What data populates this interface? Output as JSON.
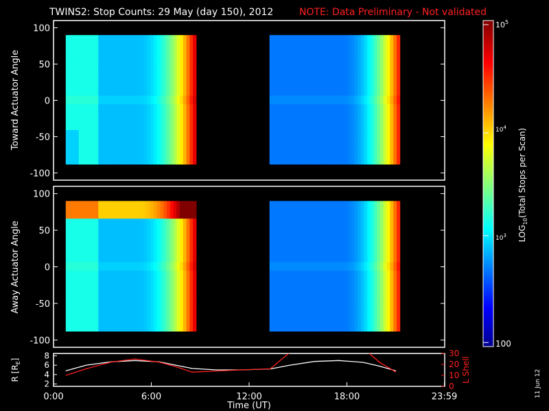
{
  "header": {
    "title": "TWINS2: Stop Counts: 29 May (day 150), 2012",
    "note": "NOTE: Data Preliminary - Not validated"
  },
  "colors": {
    "note": "#ff2020",
    "lshell": "#ff2020",
    "radius": "#ffffff",
    "axes": "#ffffff",
    "background": "#000000"
  },
  "side_stamp": "11 Jun 12",
  "chart_data": [
    {
      "type": "heatmap",
      "panel": "toward",
      "ylabel": "Toward Actuator Angle",
      "ylim": [
        -110,
        110
      ],
      "yticks": [
        "100",
        "50",
        "0",
        "-50",
        "-100"
      ],
      "ytick_values": [
        100,
        50,
        0,
        -50,
        -100
      ],
      "xlim_hours": [
        0,
        24
      ],
      "data_blocks_hours": [
        [
          0.75,
          8.75
        ],
        [
          13.25,
          21.25
        ]
      ],
      "angle_range": [
        -88,
        90
      ],
      "description_values": "log10 total stops per scan, ~2.7 mid-angles rising to ~4.8 at block ends"
    },
    {
      "type": "heatmap",
      "panel": "away",
      "ylabel": "Away Actuator Angle",
      "ylim": [
        -110,
        110
      ],
      "yticks": [
        "100",
        "50",
        "0",
        "-50",
        "-100"
      ],
      "ytick_values": [
        100,
        50,
        0,
        -50,
        -100
      ],
      "xlim_hours": [
        0,
        24
      ],
      "data_blocks_hours": [
        [
          0.75,
          8.75
        ],
        [
          13.25,
          21.25
        ]
      ],
      "angle_range": [
        -88,
        90
      ]
    },
    {
      "type": "line",
      "panel": "orbit",
      "ylabel_left": "R [R",
      "ylabel_left_sub": "E",
      "ylabel_left_end": "]",
      "ylabel_right": "L Shell",
      "left_ticks": [
        "8",
        "6",
        "4",
        "2"
      ],
      "left_tick_values": [
        8,
        6,
        4,
        2
      ],
      "right_ticks": [
        "30",
        "20",
        "10",
        "0"
      ],
      "right_tick_values": [
        30,
        20,
        10,
        0
      ],
      "ylim_left": [
        1.5,
        8.5
      ],
      "ylim_right": [
        0,
        30
      ],
      "xlabel": "Time (UT)",
      "xticks": [
        "0:00",
        "6:00",
        "12:00",
        "18:00",
        "23:59"
      ],
      "xtick_values": [
        0,
        6,
        12,
        18,
        23.98
      ],
      "series": [
        {
          "x": [
            0.75,
            2,
            3.5,
            5,
            6.5,
            7.5,
            8.5,
            10,
            11.5,
            13.3,
            14.5,
            16,
            17.5,
            19,
            20,
            21
          ],
          "y": [
            4.8,
            6.0,
            6.7,
            7.0,
            6.7,
            6.0,
            5.3,
            5.0,
            5.0,
            5.2,
            6.0,
            6.8,
            7.0,
            6.6,
            5.8,
            4.8
          ]
        },
        {
          "x": [
            0.75,
            2,
            3.5,
            5,
            6.5,
            7.5,
            8.5,
            10,
            11.5,
            13.3,
            14.5,
            19.3,
            20,
            21
          ],
          "y": [
            10,
            16,
            22,
            25,
            22,
            18,
            13,
            14,
            15,
            16,
            31,
            31,
            22,
            13
          ]
        }
      ]
    }
  ],
  "colorbar": {
    "label_main": "LOG",
    "label_sub": "10",
    "label_rest": "(Total Stops per Scan)",
    "tick_top_base": "10",
    "tick_top_exp": "5",
    "tick_4_base": "10",
    "tick_4_exp": "4",
    "tick_3_base": "10",
    "tick_3_exp": "3",
    "tick_bottom": "100",
    "range_log": [
      2,
      5
    ]
  }
}
